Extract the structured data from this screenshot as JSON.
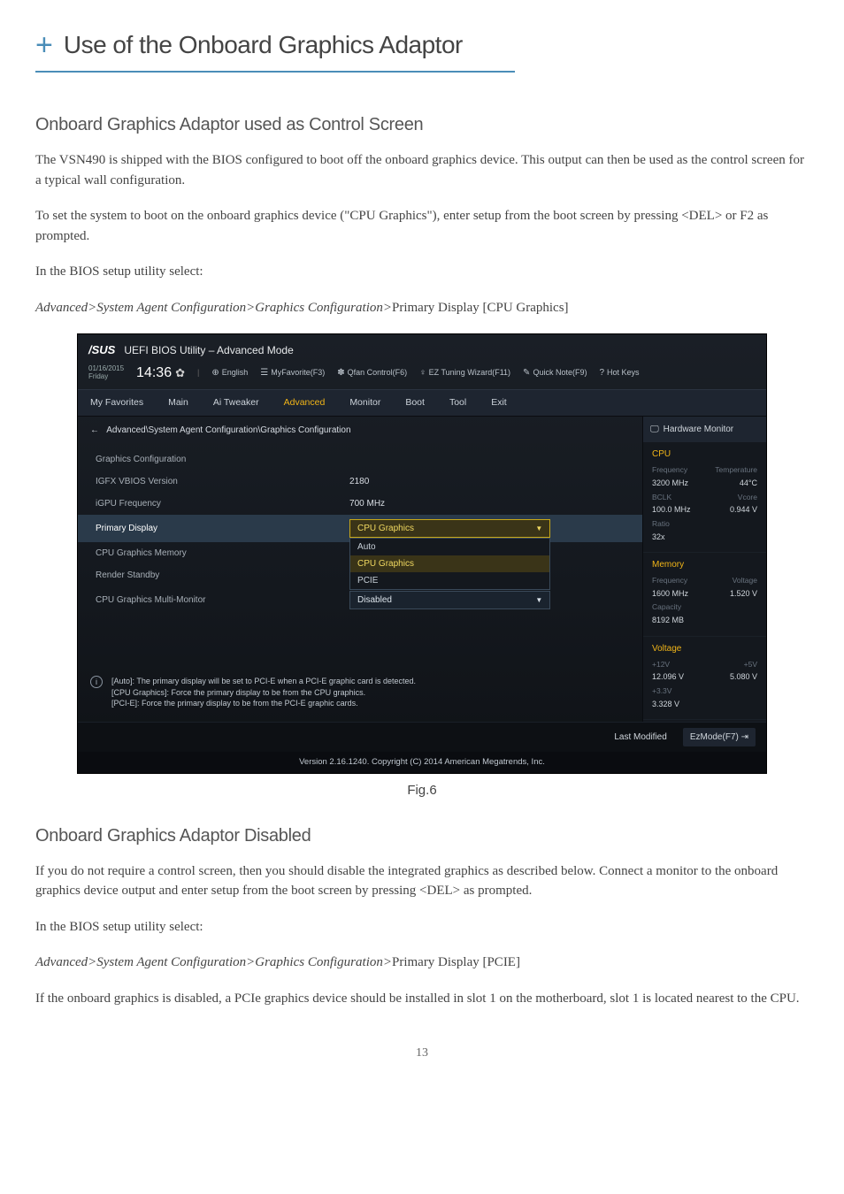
{
  "page": {
    "title": "Use of the Onboard Graphics Adaptor",
    "page_number": "13"
  },
  "section1": {
    "heading": "Onboard Graphics Adaptor used as Control Screen",
    "p1": "The VSN490 is shipped with the BIOS configured to boot off the onboard graphics device.  This output can then be used as the control screen for a typical wall configuration.",
    "p2": "To set the system to boot on the onboard graphics device (\"CPU Graphics\"), enter setup from the boot screen by pressing <DEL> or F2 as prompted.",
    "p3": "In the BIOS setup utility select:",
    "p4_italic": "Advanced>System Agent Configuration>Graphics Configuration>",
    "p4_rest": "Primary Display [CPU Graphics]"
  },
  "figure": {
    "caption": "Fig.6"
  },
  "bios": {
    "logo": "/SUS",
    "title": "UEFI BIOS Utility – Advanced Mode",
    "date": "01/16/2015",
    "day": "Friday",
    "time": "14:36",
    "meta": {
      "english": "English",
      "myfav": "MyFavorite(F3)",
      "qfan": "Qfan Control(F6)",
      "eztune": "EZ Tuning Wizard(F11)",
      "quicknote": "Quick Note(F9)",
      "hotkeys": "Hot Keys"
    },
    "tabs": [
      "My Favorites",
      "Main",
      "Ai Tweaker",
      "Advanced",
      "Monitor",
      "Boot",
      "Tool",
      "Exit"
    ],
    "active_tab_index": 3,
    "breadcrumb": "Advanced\\System Agent Configuration\\Graphics Configuration",
    "rows": [
      {
        "label": "Graphics Configuration",
        "value": ""
      },
      {
        "label": "IGFX VBIOS Version",
        "value": "2180"
      },
      {
        "label": "iGPU Frequency",
        "value": "700 MHz"
      }
    ],
    "primary_display": {
      "label": "Primary Display",
      "value": "CPU Graphics",
      "options": [
        "Auto",
        "CPU Graphics",
        "PCIE"
      ]
    },
    "cpu_mem": {
      "label": "CPU Graphics Memory"
    },
    "render_standby": {
      "label": "Render Standby"
    },
    "multi_monitor": {
      "label": "CPU Graphics Multi-Monitor",
      "value": "Disabled"
    },
    "info": [
      "[Auto]: The primary display will be set to PCI-E when a PCI-E graphic card is detected.",
      "[CPU Graphics]: Force the primary display to be from the CPU graphics.",
      "[PCI-E]: Force the primary display to be from the PCI-E graphic cards."
    ],
    "sidebar": {
      "title": "Hardware Monitor",
      "cpu": {
        "title": "CPU",
        "freq_lbl": "Frequency",
        "freq": "3200 MHz",
        "temp_lbl": "Temperature",
        "temp": "44°C",
        "bclk_lbl": "BCLK",
        "bclk": "100.0 MHz",
        "vcore_lbl": "Vcore",
        "vcore": "0.944 V",
        "ratio_lbl": "Ratio",
        "ratio": "32x"
      },
      "memory": {
        "title": "Memory",
        "freq_lbl": "Frequency",
        "freq": "1600 MHz",
        "volt_lbl": "Voltage",
        "volt": "1.520 V",
        "cap_lbl": "Capacity",
        "cap": "8192 MB"
      },
      "voltage": {
        "title": "Voltage",
        "v12_lbl": "+12V",
        "v12": "12.096 V",
        "v5_lbl": "+5V",
        "v5": "5.080 V",
        "v33_lbl": "+3.3V",
        "v33": "3.328 V"
      }
    },
    "footer": {
      "last_modified": "Last Modified",
      "ezmode": "EzMode(F7)",
      "copyright": "Version 2.16.1240. Copyright (C) 2014 American Megatrends, Inc."
    }
  },
  "section2": {
    "heading": "Onboard Graphics Adaptor Disabled",
    "p1": "If you do not require a control screen, then you should disable the integrated graphics as described below. Connect a monitor to the onboard graphics device output and enter setup from the boot screen by pressing <DEL> as prompted.",
    "p2": "In the BIOS setup utility select:",
    "p3_italic": "Advanced>System Agent Configuration>Graphics Configuration>",
    "p3_rest": "Primary Display [PCIE]",
    "p4": "If the onboard graphics is disabled, a PCIe graphics device should be installed in slot 1 on the motherboard, slot 1 is located nearest to the CPU."
  }
}
